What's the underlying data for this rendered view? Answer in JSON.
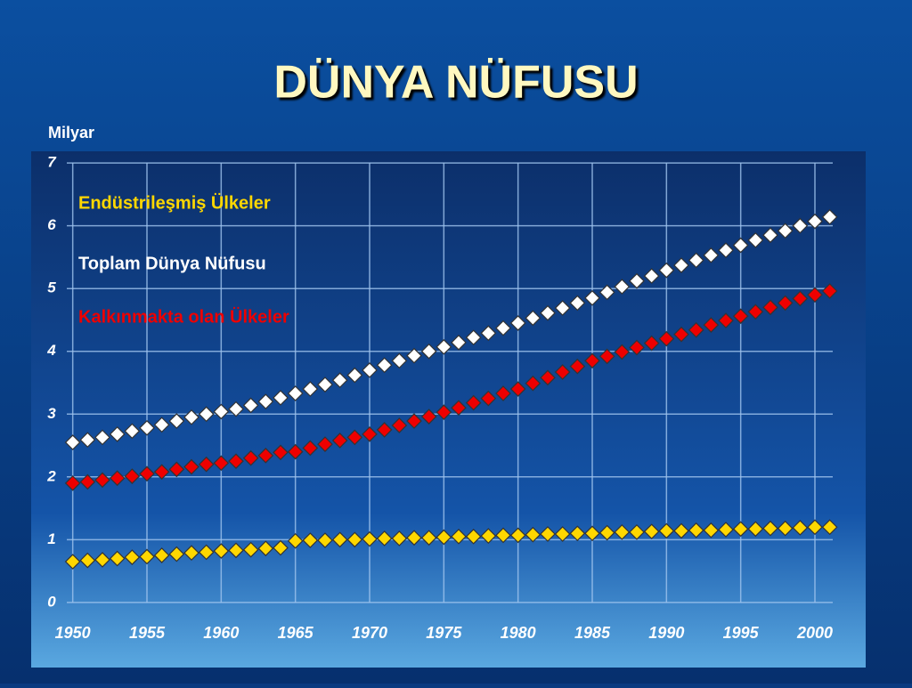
{
  "chart_data": {
    "type": "line",
    "title": "DÜNYA NÜFUSU",
    "y_label": "Milyar",
    "x": [
      1950,
      1951,
      1952,
      1953,
      1954,
      1955,
      1956,
      1957,
      1958,
      1959,
      1960,
      1961,
      1962,
      1963,
      1964,
      1965,
      1966,
      1967,
      1968,
      1969,
      1970,
      1971,
      1972,
      1973,
      1974,
      1975,
      1976,
      1977,
      1978,
      1979,
      1980,
      1981,
      1982,
      1983,
      1984,
      1985,
      1986,
      1987,
      1988,
      1989,
      1990,
      1991,
      1992,
      1993,
      1994,
      1995,
      1996,
      1997,
      1998,
      1999,
      2000,
      2001
    ],
    "series": [
      {
        "name": "Endüstrileşmiş Ülkeler",
        "color": "#ffd700",
        "values": [
          0.65,
          0.67,
          0.68,
          0.7,
          0.72,
          0.73,
          0.75,
          0.77,
          0.79,
          0.8,
          0.82,
          0.83,
          0.84,
          0.86,
          0.87,
          0.98,
          0.99,
          0.99,
          1.0,
          1.0,
          1.01,
          1.02,
          1.02,
          1.03,
          1.03,
          1.04,
          1.05,
          1.05,
          1.06,
          1.07,
          1.07,
          1.08,
          1.09,
          1.09,
          1.1,
          1.1,
          1.11,
          1.12,
          1.12,
          1.13,
          1.14,
          1.14,
          1.15,
          1.15,
          1.16,
          1.17,
          1.17,
          1.18,
          1.18,
          1.19,
          1.2,
          1.2
        ]
      },
      {
        "name": "Toplam Dünya Nüfusu",
        "color": "#ffffff",
        "values": [
          2.55,
          2.59,
          2.63,
          2.68,
          2.73,
          2.78,
          2.83,
          2.89,
          2.95,
          3.0,
          3.04,
          3.08,
          3.14,
          3.2,
          3.26,
          3.33,
          3.4,
          3.47,
          3.54,
          3.62,
          3.7,
          3.78,
          3.85,
          3.93,
          4.0,
          4.07,
          4.14,
          4.22,
          4.29,
          4.37,
          4.45,
          4.53,
          4.61,
          4.69,
          4.77,
          4.85,
          4.94,
          5.03,
          5.12,
          5.2,
          5.29,
          5.37,
          5.45,
          5.53,
          5.61,
          5.69,
          5.77,
          5.85,
          5.92,
          6.0,
          6.07,
          6.14
        ]
      },
      {
        "name": "Kalkınmakta olan Ülkeler",
        "color": "#ee0000",
        "values": [
          1.9,
          1.92,
          1.95,
          1.98,
          2.01,
          2.05,
          2.08,
          2.12,
          2.16,
          2.2,
          2.22,
          2.25,
          2.3,
          2.34,
          2.39,
          2.4,
          2.46,
          2.52,
          2.58,
          2.63,
          2.68,
          2.75,
          2.82,
          2.89,
          2.96,
          3.03,
          3.1,
          3.18,
          3.25,
          3.33,
          3.4,
          3.49,
          3.58,
          3.67,
          3.76,
          3.85,
          3.92,
          3.99,
          4.06,
          4.13,
          4.2,
          4.27,
          4.34,
          4.42,
          4.49,
          4.56,
          4.63,
          4.7,
          4.77,
          4.84,
          4.9,
          4.96
        ]
      }
    ],
    "xlim": [
      1947.5,
      2002.7
    ],
    "xticks": [
      1950,
      1955,
      1960,
      1965,
      1970,
      1975,
      1980,
      1985,
      1990,
      1995,
      2000
    ],
    "ylim": [
      -0.2,
      7.2
    ],
    "yticks": [
      0,
      1,
      2,
      3,
      4,
      5,
      6,
      7
    ],
    "grid": true
  }
}
